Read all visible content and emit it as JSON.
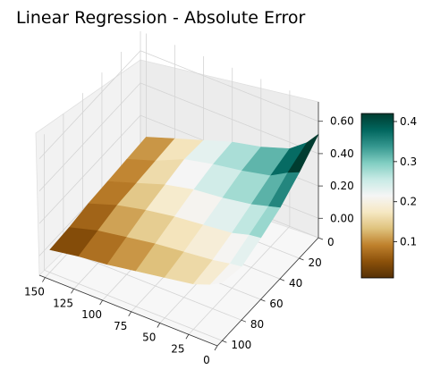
{
  "chart_data": {
    "type": "surface3d",
    "title": "Linear Regression - Absolute Error",
    "xlabel": "",
    "ylabel": "",
    "zlabel": "",
    "x_ticks": [
      150,
      125,
      100,
      75,
      50,
      25,
      0
    ],
    "y_ticks": [
      0,
      20,
      40,
      60,
      80,
      100
    ],
    "z_ticks": [
      "0.00",
      "0.20",
      "0.40",
      "0.60"
    ],
    "xlim": [
      0,
      155
    ],
    "ylim": [
      0,
      105
    ],
    "zlim": [
      -0.12,
      0.72
    ],
    "colorbar": {
      "colormap": "BrBG",
      "ticks": [
        0.1,
        0.2,
        0.3,
        0.4
      ],
      "range": [
        0.01,
        0.42
      ]
    },
    "grid": true,
    "surface_rows": [
      {
        "y": 0,
        "points": [
          [
            150,
            0.08
          ],
          [
            125,
            0.14
          ],
          [
            100,
            0.2
          ],
          [
            75,
            0.26
          ],
          [
            50,
            0.3
          ],
          [
            25,
            0.36
          ],
          [
            10,
            0.44
          ],
          [
            0,
            0.52
          ]
        ]
      },
      {
        "y": 20,
        "points": [
          [
            150,
            0.07
          ],
          [
            125,
            0.13
          ],
          [
            100,
            0.21
          ],
          [
            75,
            0.25
          ],
          [
            50,
            0.28
          ],
          [
            25,
            0.32
          ],
          [
            10,
            0.38
          ],
          [
            0,
            0.41
          ]
        ]
      },
      {
        "y": 40,
        "points": [
          [
            150,
            0.06
          ],
          [
            125,
            0.12
          ],
          [
            100,
            0.18
          ],
          [
            75,
            0.22
          ],
          [
            50,
            0.24
          ],
          [
            25,
            0.27
          ],
          [
            10,
            0.3
          ],
          [
            0,
            0.32
          ]
        ]
      },
      {
        "y": 60,
        "points": [
          [
            150,
            0.05
          ],
          [
            125,
            0.11
          ],
          [
            100,
            0.15
          ],
          [
            75,
            0.18
          ],
          [
            50,
            0.2
          ],
          [
            25,
            0.22
          ],
          [
            10,
            0.25
          ],
          [
            0,
            0.26
          ]
        ]
      },
      {
        "y": 80,
        "points": [
          [
            150,
            0.03
          ],
          [
            125,
            0.08
          ],
          [
            100,
            0.11
          ],
          [
            75,
            0.14
          ],
          [
            50,
            0.16
          ],
          [
            25,
            0.18
          ],
          [
            10,
            0.2
          ],
          [
            0,
            0.21
          ]
        ]
      },
      {
        "y": 100,
        "points": [
          [
            150,
            0.02
          ],
          [
            125,
            0.05
          ],
          [
            100,
            0.07
          ],
          [
            75,
            0.1
          ],
          [
            50,
            0.13
          ],
          [
            25,
            0.16
          ],
          [
            10,
            0.2
          ],
          [
            0,
            0.24
          ]
        ]
      }
    ]
  }
}
